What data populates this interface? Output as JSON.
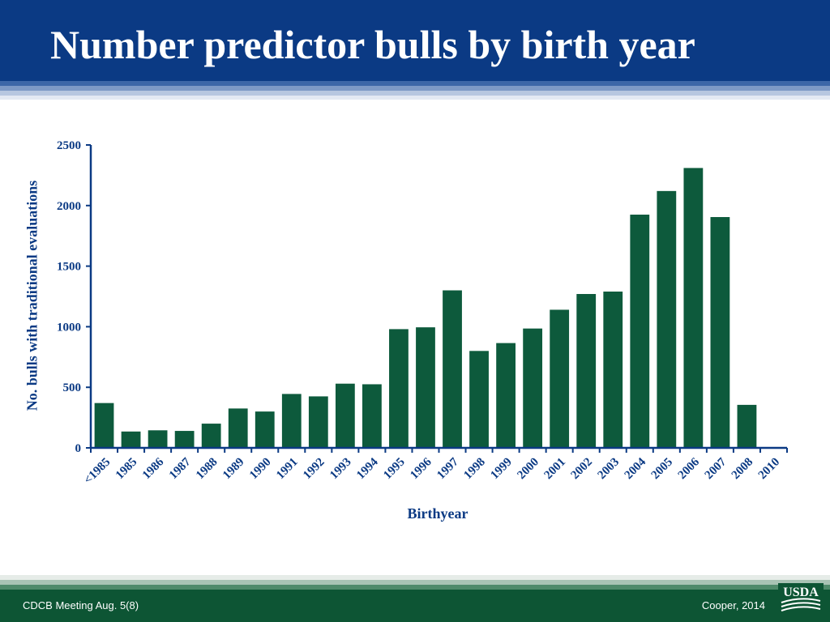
{
  "slide": {
    "title": "Number predictor bulls by birth year",
    "footer_left": "CDCB Meeting Aug. 5(8)",
    "footer_right": "Cooper, 2014",
    "logo_text": "USDA"
  },
  "colors": {
    "header": "#0b3a84",
    "bar": "#0d5a3c",
    "axis": "#0b3a84",
    "footer": "#0d5534"
  },
  "chart_data": {
    "type": "bar",
    "title": "",
    "xlabel": "Birthyear",
    "ylabel": "No. bulls with traditional evaluations",
    "ylim": [
      0,
      2500
    ],
    "yticks": [
      0,
      500,
      1000,
      1500,
      2000,
      2500
    ],
    "grid": false,
    "categories": [
      "<1985",
      "1985",
      "1986",
      "1987",
      "1988",
      "1989",
      "1990",
      "1991",
      "1992",
      "1993",
      "1994",
      "1995",
      "1996",
      "1997",
      "1998",
      "1999",
      "2000",
      "2001",
      "2002",
      "2003",
      "2004",
      "2005",
      "2006",
      "2007",
      "2008",
      "2010"
    ],
    "values": [
      370,
      135,
      145,
      140,
      200,
      325,
      300,
      445,
      425,
      530,
      525,
      980,
      995,
      1300,
      800,
      865,
      985,
      1140,
      1270,
      1290,
      1925,
      2120,
      2310,
      1905,
      355,
      0
    ]
  }
}
